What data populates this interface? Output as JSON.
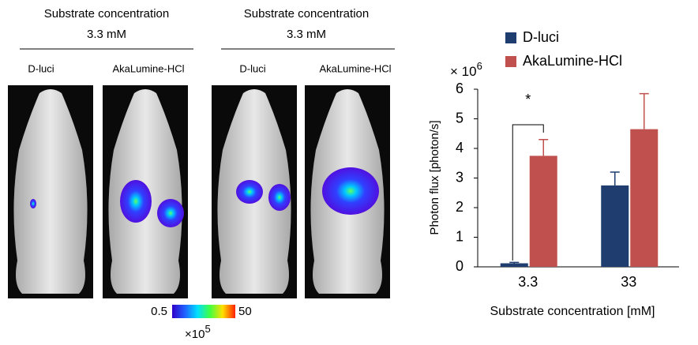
{
  "panels": [
    {
      "heading": "Substrate concentration",
      "concentration": "3.3 mM",
      "labels": [
        "D-luci",
        "AkaLumine-HCl"
      ]
    },
    {
      "heading": "Substrate concentration",
      "concentration": "3.3 mM",
      "labels": [
        "D-luci",
        "AkaLumine-HCl"
      ]
    }
  ],
  "colorbar": {
    "min": 0.5,
    "max": 50,
    "multiplier": "×10",
    "exponent": 5
  },
  "chart_data": {
    "type": "bar",
    "categories": [
      "3.3",
      "33"
    ],
    "series": [
      {
        "name": "D-luci",
        "color": "#1f3d6e",
        "values": [
          0.12,
          2.75
        ],
        "errors": [
          0.03,
          0.45
        ]
      },
      {
        "name": "AkaLumine-HCl",
        "color": "#c0504d",
        "values": [
          3.75,
          4.65
        ],
        "errors": [
          0.55,
          1.2
        ]
      }
    ],
    "ylim": [
      0,
      6
    ],
    "yticks": [
      0,
      1,
      2,
      3,
      4,
      5,
      6
    ],
    "y_multiplier": "× 10",
    "y_exponent": 6,
    "y_label": "Photon flux [photon/s]",
    "x_label": "Substrate concentration [mM]",
    "annotation": "*",
    "grid": false
  }
}
